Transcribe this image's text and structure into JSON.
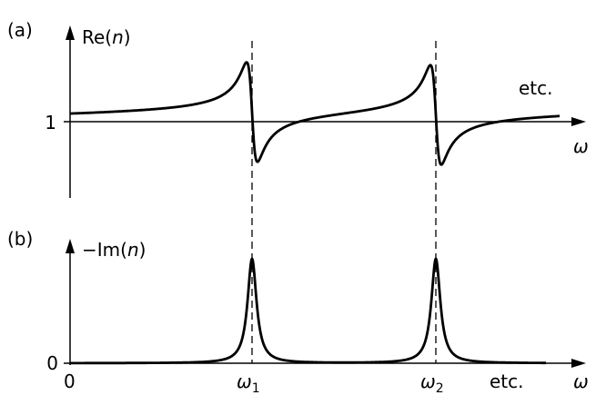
{
  "panel_a": {
    "label": "(a)",
    "y_axis": {
      "prefix": "Re(",
      "var": "n",
      "suffix": ")"
    },
    "tick": "1",
    "note": "etc.",
    "x_axis": "ω"
  },
  "panel_b": {
    "label": "(b)",
    "y_axis": {
      "prefix": "−Im(",
      "var": "n",
      "suffix": ")"
    },
    "y_tick": "0",
    "x_tick": "0",
    "resonances": [
      {
        "symbol": "ω",
        "sub": "1"
      },
      {
        "symbol": "ω",
        "sub": "2"
      }
    ],
    "note": "etc.",
    "x_axis": "ω"
  }
}
